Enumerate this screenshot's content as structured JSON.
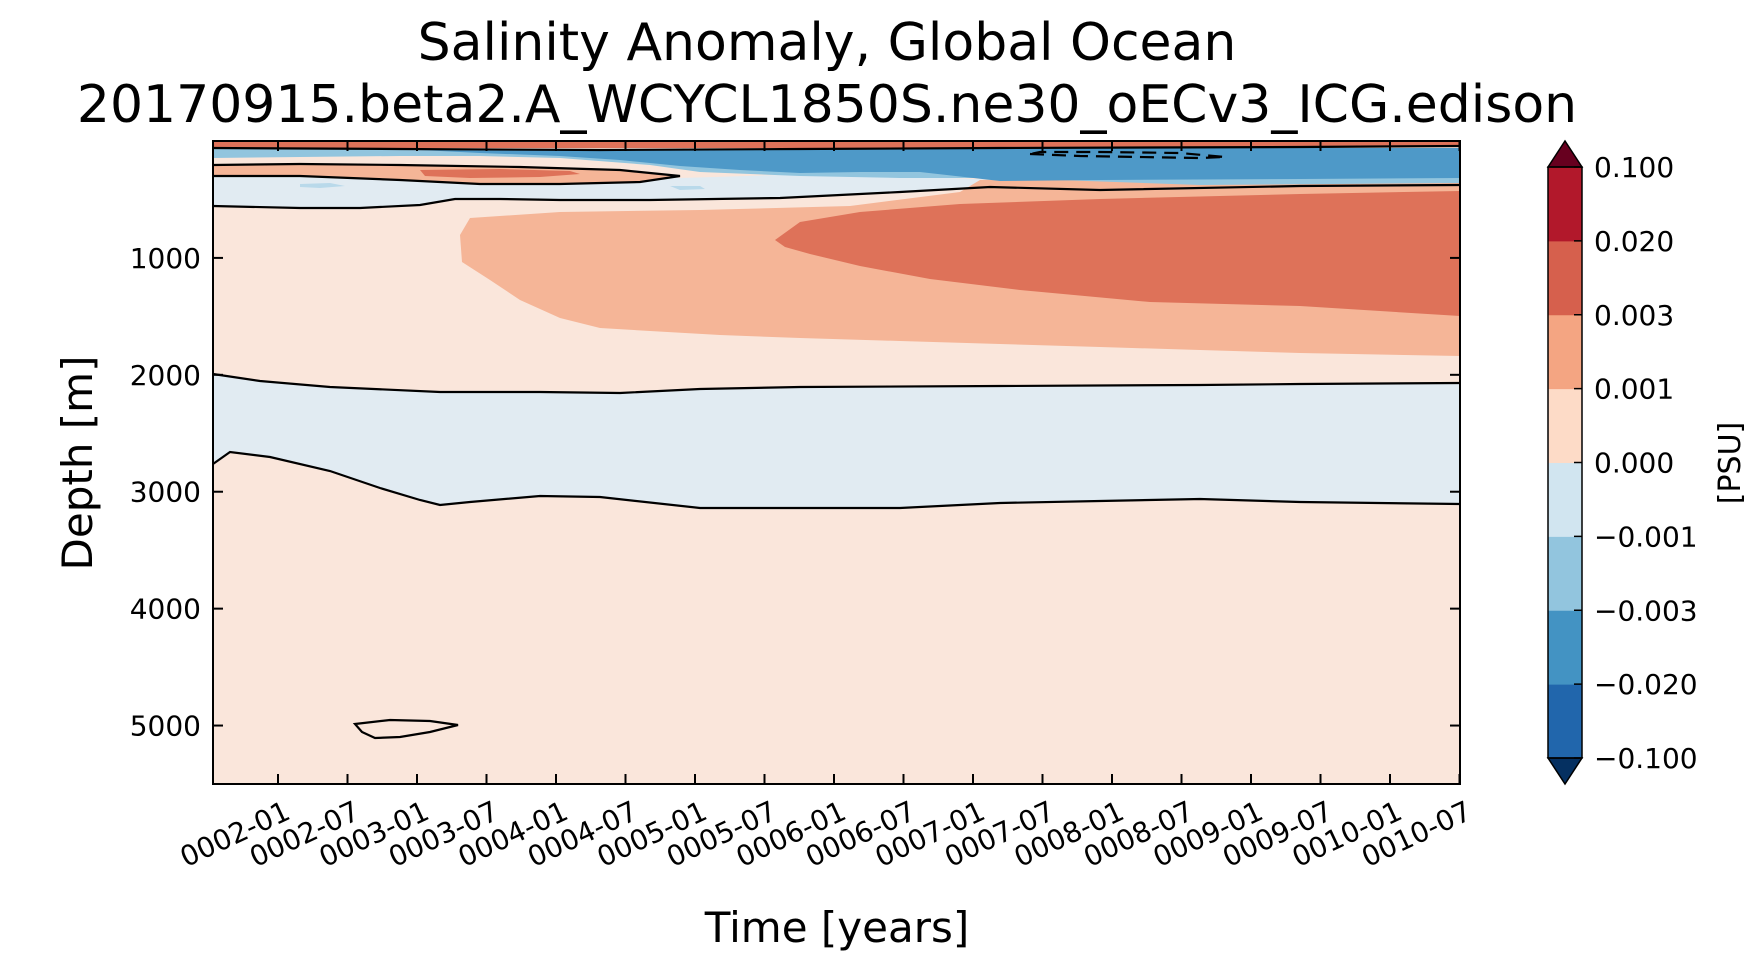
{
  "chart_data": {
    "type": "heatmap",
    "title": "Salinity Anomaly, Global Ocean",
    "subtitle": "20170915.beta2.A_WCYCL1850S.ne30_oECv3_ICG.edison",
    "xlabel": "Time [years]",
    "ylabel": "Depth [m]",
    "x_ticks": [
      "0002-01",
      "0002-07",
      "0003-01",
      "0003-07",
      "0004-01",
      "0004-07",
      "0005-01",
      "0005-07",
      "0006-01",
      "0006-07",
      "0007-01",
      "0007-07",
      "0008-01",
      "0008-07",
      "0009-01",
      "0009-07",
      "0010-01",
      "0010-07"
    ],
    "y_ticks": [
      1000,
      2000,
      3000,
      4000,
      5000
    ],
    "ylim": [
      5500,
      0
    ],
    "y_inverted": true,
    "colorbar": {
      "label": "[PSU]",
      "levels": [
        "-0.100",
        "−0.020",
        "−0.003",
        "−0.001",
        "0.000",
        "0.001",
        "0.003",
        "0.020",
        "0.100"
      ],
      "tick_labels": [
        "−0.100",
        "−0.020",
        "−0.003",
        "−0.001",
        "0.000",
        "0.001",
        "0.003",
        "0.020",
        "0.100"
      ],
      "colors": [
        "#2166ac",
        "#4393c3",
        "#92c5de",
        "#d1e5f0",
        "#fddbc7",
        "#f4a582",
        "#d6604d",
        "#b2182b"
      ],
      "extend_low_color": "#053061",
      "extend_high_color": "#67001f"
    },
    "grid": false
  }
}
